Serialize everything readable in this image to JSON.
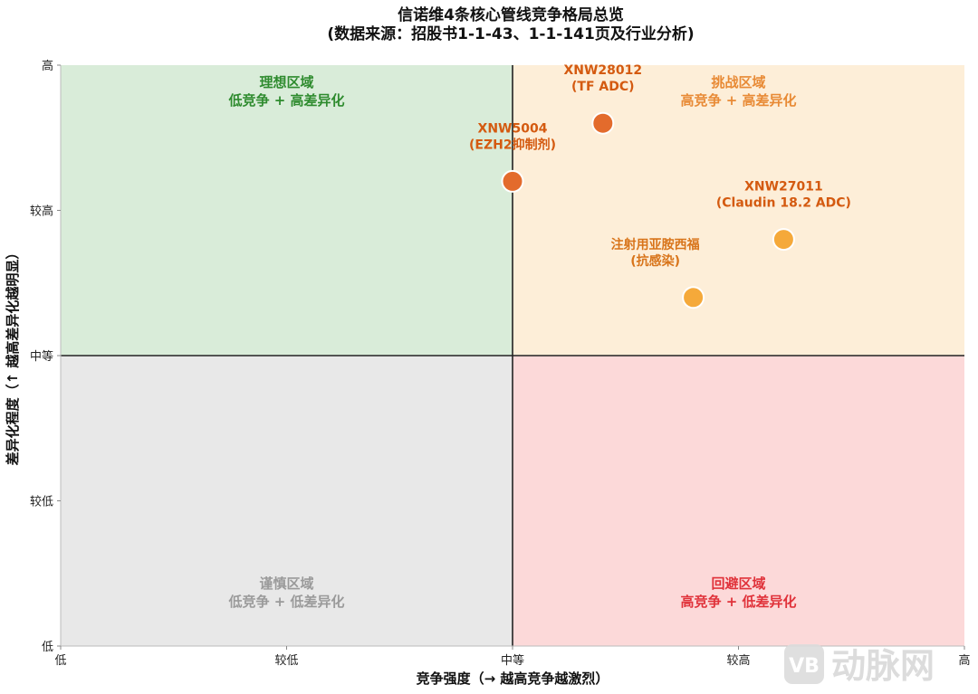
{
  "chart_data": {
    "type": "scatter",
    "title": "信诺维4条核心管线竞争格局总览",
    "subtitle": "(数据来源：招股书1-1-43、1-1-141页及行业分析)",
    "xlabel": "竞争强度（→ 越高竞争越激烈）",
    "ylabel": "差异化程度（↑ 越高差异化越明显）",
    "xlim": [
      0,
      4
    ],
    "ylim": [
      0,
      4
    ],
    "x_tick_labels": [
      "低",
      "较低",
      "中等",
      "较高",
      "高"
    ],
    "y_tick_labels": [
      "低",
      "较低",
      "中等",
      "较高",
      "高"
    ],
    "quadrants": [
      {
        "name": "理想区域",
        "desc": "低竞争 + 高差异化",
        "position": "top-left",
        "fill": "#d9ecd9",
        "text_color": "#2e8b2e"
      },
      {
        "name": "挑战区域",
        "desc": "高竞争 + 高差异化",
        "position": "top-right",
        "fill": "#fdeed8",
        "text_color": "#e88a35"
      },
      {
        "name": "谨慎区域",
        "desc": "低竞争 + 低差异化",
        "position": "bottom-left",
        "fill": "#e8e8e8",
        "text_color": "#9a9a9a"
      },
      {
        "name": "回避区域",
        "desc": "高竞争 + 低差异化",
        "position": "bottom-right",
        "fill": "#fcd9d9",
        "text_color": "#e0323a"
      }
    ],
    "points": [
      {
        "name": "XNW28012",
        "note": "(TF ADC)",
        "x": 2.4,
        "y": 3.6,
        "color": "#e36b2c",
        "label_color": "#d45a10"
      },
      {
        "name": "XNW5004",
        "note": "(EZH2抑制剂)",
        "x": 2.0,
        "y": 3.2,
        "color": "#e36b2c",
        "label_color": "#d45a10"
      },
      {
        "name": "XNW27011",
        "note": "(Claudin 18.2 ADC)",
        "x": 3.2,
        "y": 2.8,
        "color": "#f5a93a",
        "label_color": "#d45a10"
      },
      {
        "name": "注射用亚胺西福",
        "note": "(抗感染)",
        "x": 2.8,
        "y": 2.4,
        "color": "#f5a93a",
        "label_color": "#d8741a"
      }
    ],
    "grid": false,
    "divider_lines": {
      "x": 2,
      "y": 2
    }
  },
  "watermark": "动脉网"
}
